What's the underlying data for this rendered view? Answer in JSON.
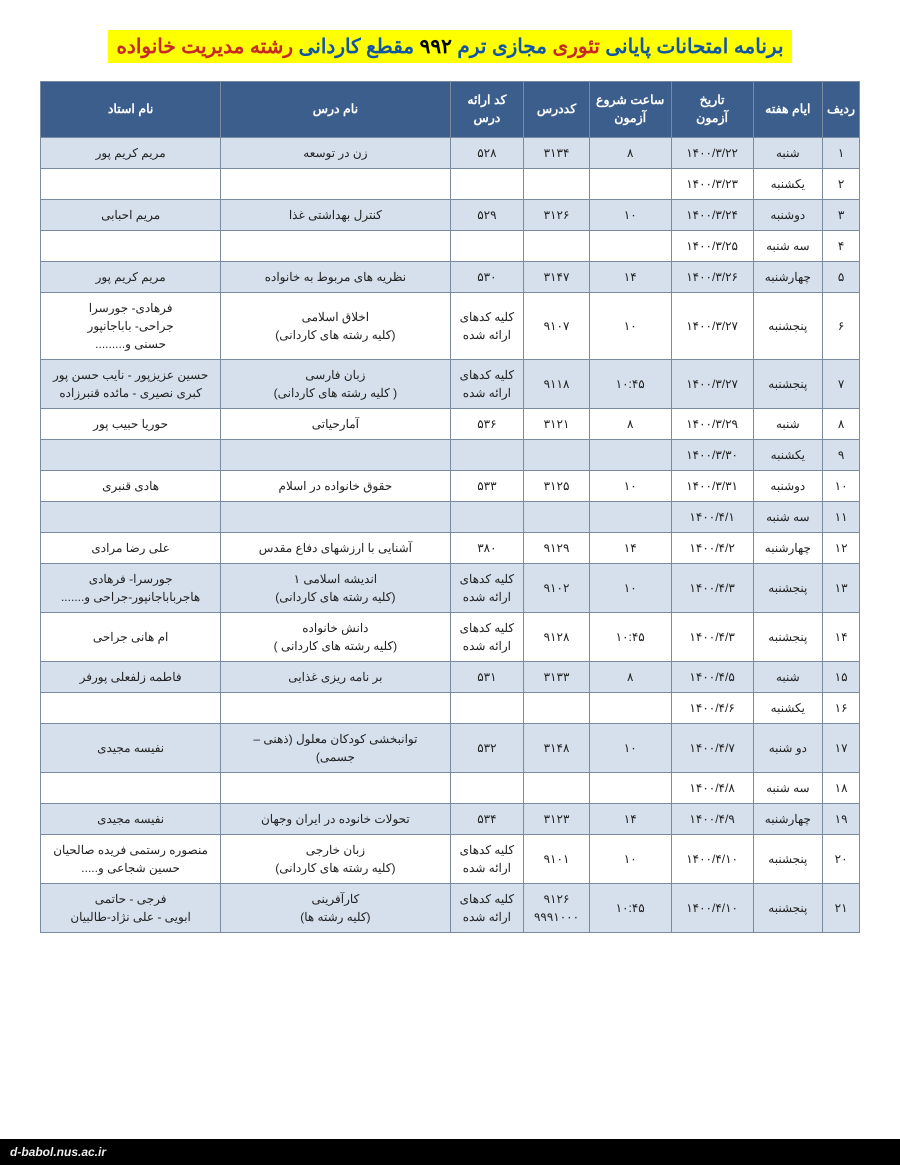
{
  "title": {
    "p1": "برنامه امتحانات پایانی",
    "p2": "تئوری",
    "p3": "مجازی ترم",
    "p4": "۹۹۲",
    "p5": "مقطع کاردانی",
    "p6": "رشته مدیریت خانواده"
  },
  "colors": {
    "header_bg": "#3b5e8c",
    "header_text": "#ffffff",
    "row_even_bg": "#d6e0ec",
    "row_odd_bg": "#ffffff",
    "border": "#7a8aa0",
    "title_highlight": "#ffff00",
    "title_blue": "#1155a6",
    "title_red": "#c62828"
  },
  "columns": [
    {
      "key": "row",
      "label": "ردیف"
    },
    {
      "key": "day",
      "label": "ایام هفته"
    },
    {
      "key": "date",
      "label": "تاریخ\nآزمون"
    },
    {
      "key": "start_time",
      "label": "ساعت شروع\nآزمون"
    },
    {
      "key": "code",
      "label": "کددرس"
    },
    {
      "key": "offer_code",
      "label": "کد ارائه\nدرس"
    },
    {
      "key": "course",
      "label": "نام درس"
    },
    {
      "key": "instructor",
      "label": "نام استاد"
    }
  ],
  "rows": [
    {
      "row": "۱",
      "day": "شنبه",
      "date": "۱۴۰۰/۳/۲۲",
      "start_time": "۸",
      "code": "۳۱۳۴",
      "offer_code": "۵۲۸",
      "course": "زن در توسعه",
      "instructor": "مریم کریم پور"
    },
    {
      "row": "۲",
      "day": "یکشنبه",
      "date": "۱۴۰۰/۳/۲۳",
      "start_time": "",
      "code": "",
      "offer_code": "",
      "course": "",
      "instructor": ""
    },
    {
      "row": "۳",
      "day": "دوشنبه",
      "date": "۱۴۰۰/۳/۲۴",
      "start_time": "۱۰",
      "code": "۳۱۲۶",
      "offer_code": "۵۲۹",
      "course": "کنترل بهداشتی غذا",
      "instructor": "مریم احبابی"
    },
    {
      "row": "۴",
      "day": "سه شنبه",
      "date": "۱۴۰۰/۳/۲۵",
      "start_time": "",
      "code": "",
      "offer_code": "",
      "course": "",
      "instructor": ""
    },
    {
      "row": "۵",
      "day": "چهارشنبه",
      "date": "۱۴۰۰/۳/۲۶",
      "start_time": "۱۴",
      "code": "۳۱۴۷",
      "offer_code": "۵۳۰",
      "course": "نظریه های مربوط به خانواده",
      "instructor": "مریم کریم پور"
    },
    {
      "row": "۶",
      "day": "پنجشنبه",
      "date": "۱۴۰۰/۳/۲۷",
      "start_time": "۱۰",
      "code": "۹۱۰۷",
      "offer_code": "کلیه کدهای\nارائه شده",
      "course": "اخلاق اسلامی\n(کلیه رشته های کاردانی)",
      "instructor": "فرهادی- جورسرا\nجراحی- باباجانپور\nحسنی و........."
    },
    {
      "row": "۷",
      "day": "پنجشنبه",
      "date": "۱۴۰۰/۳/۲۷",
      "start_time": "۱۰:۴۵",
      "code": "۹۱۱۸",
      "offer_code": "کلیه کدهای\nارائه شده",
      "course": "زبان فارسی\n( کلیه رشته های کاردانی)",
      "instructor": "حسین عزیزپور - نایب حسن پور\nکبری نصیری - مائده قنبرزاده"
    },
    {
      "row": "۸",
      "day": "شنبه",
      "date": "۱۴۰۰/۳/۲۹",
      "start_time": "۸",
      "code": "۳۱۲۱",
      "offer_code": "۵۳۶",
      "course": "آمارحیاتی",
      "instructor": "حوریا حبیب پور"
    },
    {
      "row": "۹",
      "day": "یکشنبه",
      "date": "۱۴۰۰/۳/۳۰",
      "start_time": "",
      "code": "",
      "offer_code": "",
      "course": "",
      "instructor": ""
    },
    {
      "row": "۱۰",
      "day": "دوشنبه",
      "date": "۱۴۰۰/۳/۳۱",
      "start_time": "۱۰",
      "code": "۳۱۲۵",
      "offer_code": "۵۳۳",
      "course": "حقوق خانواده در اسلام",
      "instructor": "هادی قنبری"
    },
    {
      "row": "۱۱",
      "day": "سه شنبه",
      "date": "۱۴۰۰/۴/۱",
      "start_time": "",
      "code": "",
      "offer_code": "",
      "course": "",
      "instructor": ""
    },
    {
      "row": "۱۲",
      "day": "چهارشنبه",
      "date": "۱۴۰۰/۴/۲",
      "start_time": "۱۴",
      "code": "۹۱۲۹",
      "offer_code": "۳۸۰",
      "course": "آشنایی با ارزشهای دفاع مقدس",
      "instructor": "علی رضا مرادی"
    },
    {
      "row": "۱۳",
      "day": "پنجشنبه",
      "date": "۱۴۰۰/۴/۳",
      "start_time": "۱۰",
      "code": "۹۱۰۲",
      "offer_code": "کلیه کدهای\nارائه شده",
      "course": "اندیشه اسلامی ۱\n(کلیه رشته های کاردانی)",
      "instructor": "جورسرا-  فرهادی\nهاجرباباجانپور-جراحی و......."
    },
    {
      "row": "۱۴",
      "day": "پنجشنبه",
      "date": "۱۴۰۰/۴/۳",
      "start_time": "۱۰:۴۵",
      "code": "۹۱۲۸",
      "offer_code": "کلیه کدهای\nارائه شده",
      "course": "دانش خانواده\n(کلیه رشته های کاردانی )",
      "instructor": "ام هانی جراحی"
    },
    {
      "row": "۱۵",
      "day": "شنبه",
      "date": "۱۴۰۰/۴/۵",
      "start_time": "۸",
      "code": "۳۱۳۳",
      "offer_code": "۵۳۱",
      "course": "بر نامه ریزی غذایی",
      "instructor": "فاطمه زلفعلی پورفر"
    },
    {
      "row": "۱۶",
      "day": "یکشنبه",
      "date": "۱۴۰۰/۴/۶",
      "start_time": "",
      "code": "",
      "offer_code": "",
      "course": "",
      "instructor": ""
    },
    {
      "row": "۱۷",
      "day": "دو شنبه",
      "date": "۱۴۰۰/۴/۷",
      "start_time": "۱۰",
      "code": "۳۱۴۸",
      "offer_code": "۵۳۲",
      "course": "توانبخشی کودکان معلول (ذهنی –\nجسمی)",
      "instructor": "نفیسه مجیدی"
    },
    {
      "row": "۱۸",
      "day": "سه شنبه",
      "date": "۱۴۰۰/۴/۸",
      "start_time": "",
      "code": "",
      "offer_code": "",
      "course": "",
      "instructor": ""
    },
    {
      "row": "۱۹",
      "day": "چهارشنبه",
      "date": "۱۴۰۰/۴/۹",
      "start_time": "۱۴",
      "code": "۳۱۲۳",
      "offer_code": "۵۳۴",
      "course": "تحولات خانوده در ایران وجهان",
      "instructor": "نفیسه مجیدی"
    },
    {
      "row": "۲۰",
      "day": "پنجشنبه",
      "date": "۱۴۰۰/۴/۱۰",
      "start_time": "۱۰",
      "code": "۹۱۰۱",
      "offer_code": "کلیه کدهای\nارائه شده",
      "course": "زبان خارجی\n(کلیه رشته های کاردانی)",
      "instructor": "منصوره رستمی  فریده صالحیان\nحسین شجاعی و....."
    },
    {
      "row": "۲۱",
      "day": "پنجشنبه",
      "date": "۱۴۰۰/۴/۱۰",
      "start_time": "۱۰:۴۵",
      "code": "۹۱۲۶\n۹۹۹۱۰۰۰",
      "offer_code": "کلیه کدهای\nارائه شده",
      "course": "کارآفرینی\n(کلیه رشته ها)",
      "instructor": "فرجی - حاتمی\nابویی - علی نژاد-طالبیان"
    }
  ],
  "footer": "d-babol.nus.ac.ir"
}
